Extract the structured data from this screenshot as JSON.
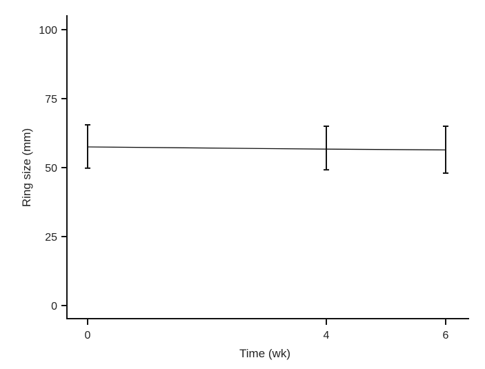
{
  "chart_data": {
    "type": "line",
    "title": "",
    "xlabel": "Time (wk)",
    "ylabel": "Ring size (mm)",
    "x": [
      0,
      4,
      6
    ],
    "x_ticks": [
      "0",
      "4",
      "6"
    ],
    "y_ticks": [
      "0",
      "25",
      "50",
      "75",
      "100"
    ],
    "xlim": [
      0,
      6
    ],
    "ylim": [
      0,
      100
    ],
    "grid": false,
    "series": [
      {
        "values": [
          57.5,
          56.7,
          56.4
        ],
        "error_lower": [
          49.8,
          49.2,
          48.0
        ],
        "error_upper": [
          65.5,
          65.0,
          65.0
        ]
      }
    ]
  },
  "style": {
    "line_color": "#111111",
    "axis_color": "#111111"
  }
}
